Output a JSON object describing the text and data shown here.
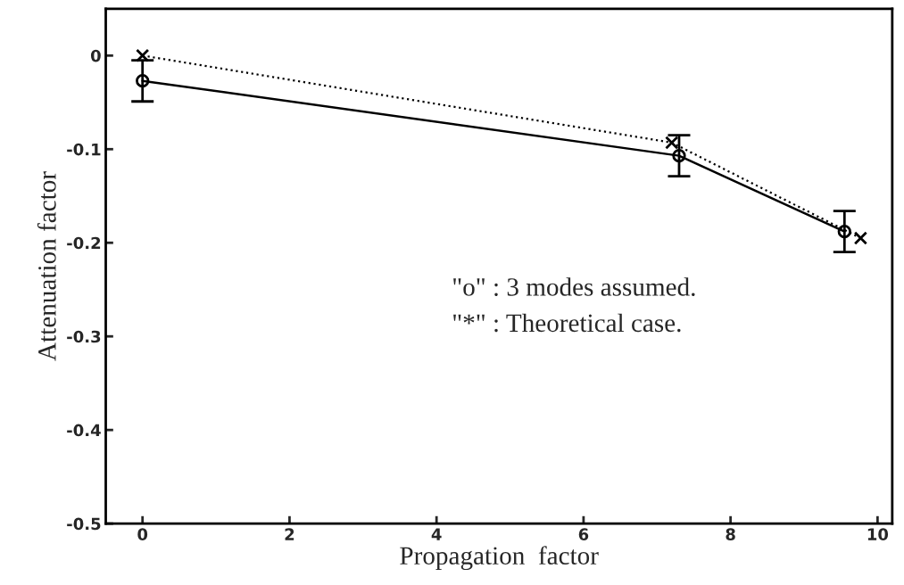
{
  "chart_data": {
    "type": "line",
    "xlabel": "Propagation  factor",
    "ylabel": "Attenuation factor",
    "series": [
      {
        "color": "#000000",
        "x": [
          0,
          7.3,
          9.55
        ],
        "values": [
          -0.027,
          -0.107,
          -0.188
        ],
        "errors": [
          0.022,
          0.022,
          0.022
        ],
        "marker": "circle",
        "line_style": "solid"
      },
      {
        "color": "#000000",
        "x": [
          0,
          7.2,
          9.77
        ],
        "values": [
          0,
          -0.093,
          -0.195
        ],
        "marker": "cross",
        "line_style": "dotted"
      }
    ],
    "xlim": [
      -0.5,
      10.2
    ],
    "xticks": [
      0,
      2,
      4,
      6,
      8,
      10
    ],
    "ylim": [
      -0.5,
      0.05
    ],
    "yticks": [
      0,
      -0.1,
      -0.2,
      -0.3,
      -0.4,
      -0.5
    ],
    "annotations": [
      "\"o\" : 3 modes assumed.",
      "\"*\" : Theoretical case."
    ],
    "grid": false,
    "legend": false
  }
}
